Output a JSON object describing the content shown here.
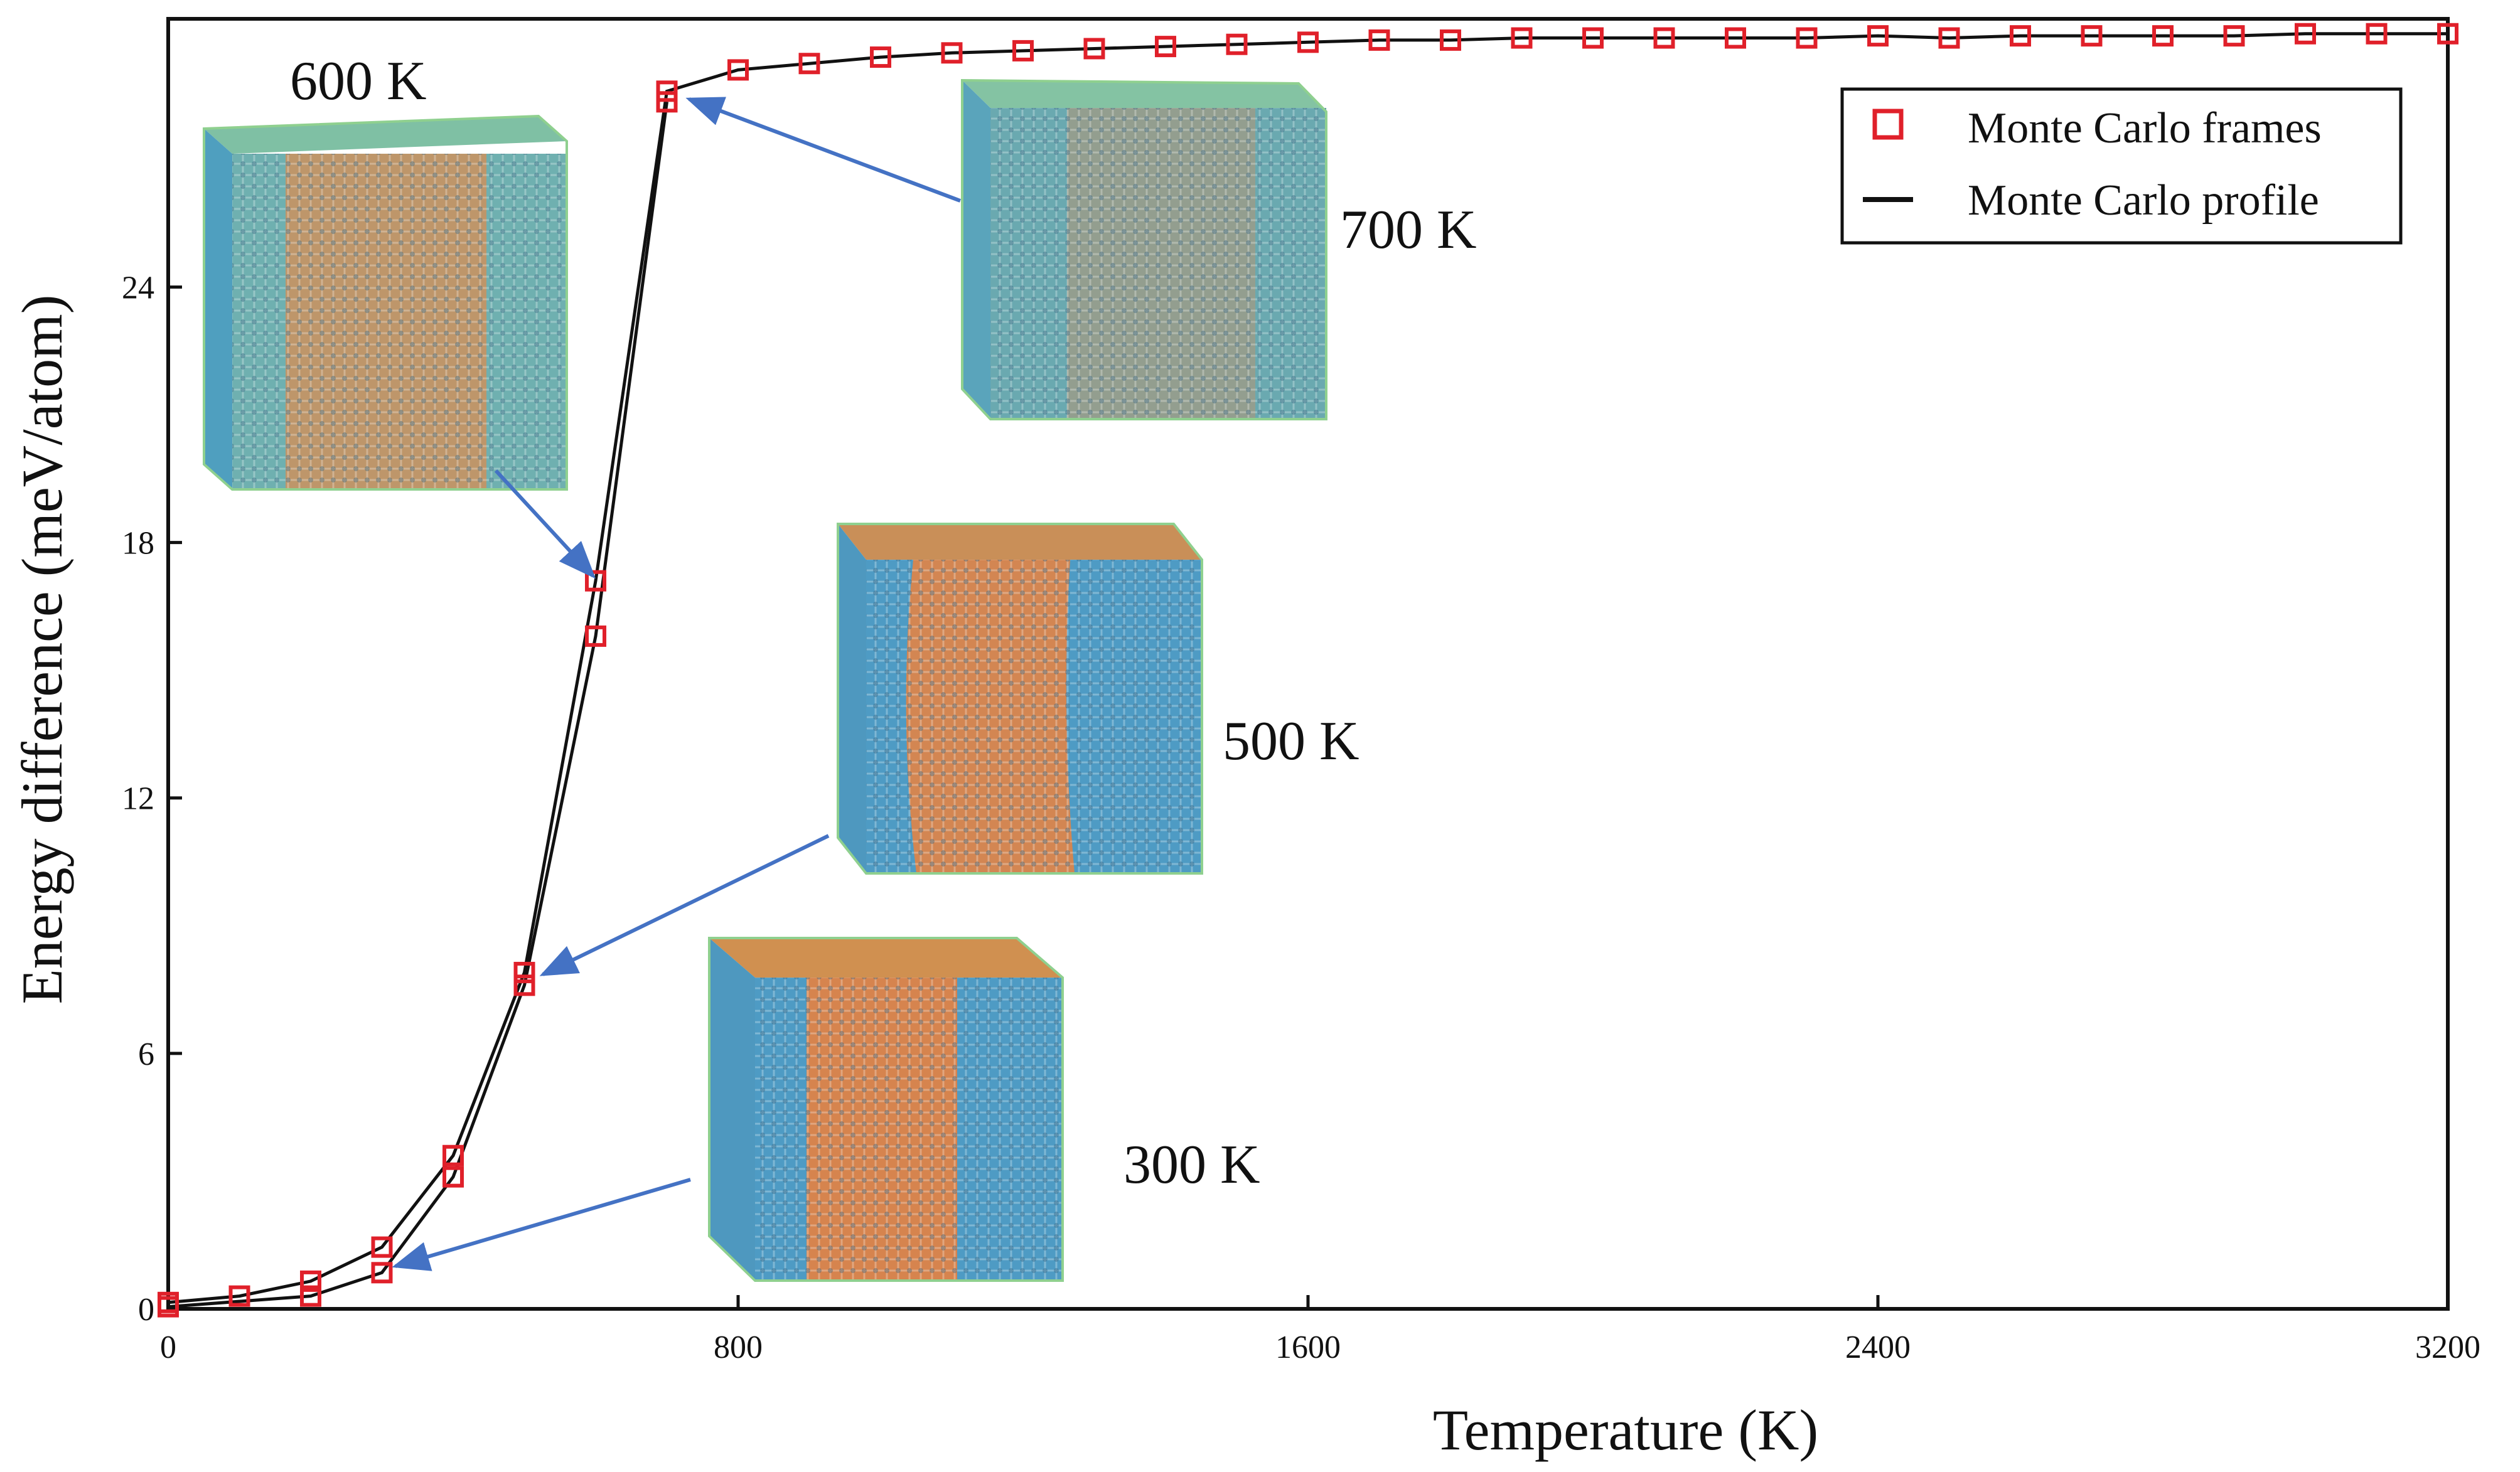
{
  "chart_data": {
    "type": "line",
    "title": "",
    "xlabel": "Temperature (K)",
    "ylabel": "Energy difference (meV/atom)",
    "xlim": [
      0,
      3200
    ],
    "ylim": [
      0,
      30.3
    ],
    "x_ticks": [
      0,
      800,
      1600,
      2400,
      3200
    ],
    "y_ticks": [
      0,
      6,
      12,
      18,
      24
    ],
    "grid": false,
    "legend_position": "top-right",
    "legend": [
      {
        "label": "Monte Carlo frames",
        "marker": "open-square",
        "color": "#e0202a"
      },
      {
        "label": "Monte Carlo profile",
        "marker": "line",
        "color": "#111111"
      }
    ],
    "series": [
      {
        "name": "Monte Carlo frames",
        "style": "open-square",
        "color": "#e0202a",
        "x": [
          0,
          100,
          200,
          300,
          400,
          500,
          600,
          700,
          800,
          900,
          1000,
          1100,
          1200,
          1300,
          1400,
          1500,
          1600,
          1700,
          1800,
          1900,
          2000,
          2100,
          2200,
          2300,
          2400,
          2500,
          2600,
          2700,
          2800,
          2900,
          3000,
          3100,
          3200
        ],
        "y": [
          0.15,
          0.3,
          0.65,
          1.45,
          3.6,
          7.9,
          17.1,
          28.6,
          29.1,
          29.25,
          29.4,
          29.5,
          29.55,
          29.6,
          29.65,
          29.7,
          29.75,
          29.8,
          29.8,
          29.85,
          29.85,
          29.85,
          29.85,
          29.85,
          29.9,
          29.85,
          29.9,
          29.9,
          29.9,
          29.9,
          29.95,
          29.95,
          29.95
        ]
      },
      {
        "name": "Monte Carlo frames",
        "style": "open-square",
        "color": "#e0202a",
        "x": [
          0,
          200,
          300,
          400,
          500,
          600,
          700
        ],
        "y": [
          0.05,
          0.3,
          0.85,
          3.1,
          7.6,
          15.8,
          28.35
        ]
      },
      {
        "name": "Monte Carlo profile",
        "style": "line",
        "color": "#111111",
        "x": [
          0,
          100,
          200,
          300,
          400,
          500,
          600,
          700,
          800,
          900,
          1000,
          1100,
          1200,
          1300,
          1400,
          1500,
          1600,
          1700,
          1800,
          1900,
          2000,
          2100,
          2200,
          2300,
          2400,
          2500,
          2600,
          2700,
          2800,
          2900,
          3000,
          3100,
          3200
        ],
        "y": [
          0.15,
          0.3,
          0.65,
          1.45,
          3.6,
          7.9,
          17.1,
          28.6,
          29.1,
          29.25,
          29.4,
          29.5,
          29.55,
          29.6,
          29.65,
          29.7,
          29.75,
          29.8,
          29.8,
          29.85,
          29.85,
          29.85,
          29.85,
          29.85,
          29.9,
          29.85,
          29.9,
          29.9,
          29.9,
          29.9,
          29.95,
          29.95,
          29.95
        ]
      },
      {
        "name": "Monte Carlo profile",
        "style": "line",
        "color": "#111111",
        "x": [
          0,
          200,
          300,
          400,
          500,
          600,
          700
        ],
        "y": [
          0.05,
          0.3,
          0.85,
          3.1,
          7.6,
          15.8,
          28.35
        ]
      }
    ],
    "annotations": [
      {
        "label": "600 K",
        "points_to": {
          "x": 600,
          "y": 17.1
        },
        "arrow_color": "#4472c4",
        "cube_colors": {
          "edge": "#5fb3a2",
          "left": "#6fb3ac",
          "middle": "#cf9360",
          "right": "#5f9ec0"
        }
      },
      {
        "label": "700 K",
        "points_to": {
          "x": 730,
          "y": 28.4
        },
        "arrow_color": "#4472c4",
        "cube_colors": {
          "edge": "#6dbb9f",
          "left": "#6aa9b0",
          "middle": "#a79a7a",
          "right": "#6aa9b0"
        }
      },
      {
        "label": "500 K",
        "points_to": {
          "x": 520,
          "y": 7.7
        },
        "arrow_color": "#4472c4",
        "cube_colors": {
          "edge": "#5fbf9e",
          "left": "#4e9bc4",
          "middle": "#d38652",
          "right": "#4e9bc4"
        }
      },
      {
        "label": "300 K",
        "points_to": {
          "x": 330,
          "y": 1.1
        },
        "arrow_color": "#4472c4",
        "cube_colors": {
          "edge": "#5fbf9e",
          "left": "#4e9bc4",
          "middle": "#d6844e",
          "right": "#4e9bc4"
        }
      }
    ]
  }
}
